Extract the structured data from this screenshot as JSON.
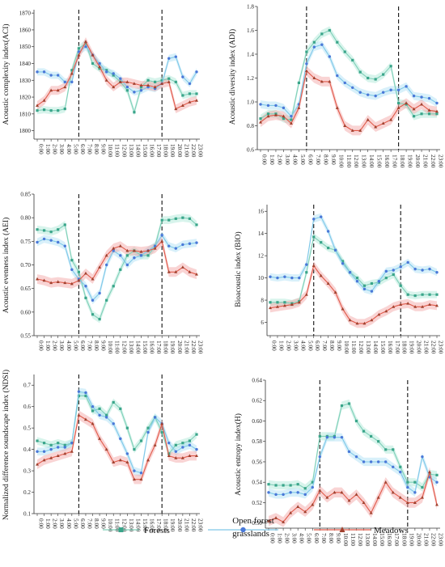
{
  "time_labels": [
    "0:00",
    "1:00",
    "2:00",
    "3:00",
    "4:00",
    "5:00",
    "6:00",
    "7:00",
    "8:00",
    "9:00",
    "10:00",
    "11:00",
    "12:00",
    "13:00",
    "14:00",
    "15:00",
    "16:00",
    "17:00",
    "18:00",
    "19:00",
    "20:00",
    "21:00",
    "22:00",
    "23:00"
  ],
  "legend": [
    {
      "name": "Forests",
      "color": "#3aa58a",
      "marker": "square"
    },
    {
      "name": "Open forest grasslands",
      "color": "#4a78d8",
      "marker": "circle"
    },
    {
      "name": "Meadows",
      "color": "#a0412e",
      "marker": "triangle"
    }
  ],
  "colors": {
    "forests_line": "#7fcfb8",
    "forests_band": "#a9e7d4",
    "ofg_line": "#7fc8e8",
    "ofg_band": "#a8ddf4",
    "meadows_line": "#e05a4a",
    "meadows_band": "#f2a0a0"
  },
  "chart_data": [
    {
      "type": "line",
      "ylabel": "Acoustic complexity index(ACI)",
      "ylim": [
        1795,
        1872
      ],
      "yticks": [
        1800,
        1810,
        1820,
        1830,
        1840,
        1850,
        1860,
        1870
      ],
      "dashed_x": [
        6,
        18
      ],
      "series": [
        {
          "name": "Forests",
          "values": [
            1812,
            1812.5,
            1812,
            1812,
            1813,
            1836,
            1849,
            1852,
            1840,
            1837,
            1836,
            1833,
            1829,
            1824,
            1811,
            1826,
            1830,
            1829,
            1830,
            1831,
            1829,
            1821,
            1822,
            1822
          ]
        },
        {
          "name": "Open forest grasslands",
          "values": [
            1835,
            1835,
            1833,
            1833,
            1829,
            1829,
            1847,
            1850,
            1845,
            1840,
            1835,
            1834,
            1831,
            1826,
            1823,
            1824,
            1826,
            1825,
            1828,
            1843,
            1844,
            1832,
            1828,
            1835
          ]
        },
        {
          "name": "Meadows",
          "values": [
            1815,
            1818,
            1824,
            1824,
            1826,
            1834,
            1845,
            1853,
            1845,
            1838,
            1830,
            1826,
            1829,
            1829,
            1828,
            1827,
            1827,
            1826,
            1828,
            1829,
            1813,
            1815,
            1817,
            1818
          ]
        }
      ]
    },
    {
      "type": "line",
      "ylabel": "Acoustic diversity index (ADI)",
      "ylim": [
        0.6,
        1.8
      ],
      "yticks": [
        0.6,
        0.8,
        1.0,
        1.2,
        1.4,
        1.6,
        1.8
      ],
      "dashed_x": [
        6,
        18
      ],
      "series": [
        {
          "name": "Forests",
          "values": [
            0.86,
            0.9,
            0.9,
            0.86,
            0.85,
            1.16,
            1.42,
            1.5,
            1.57,
            1.6,
            1.5,
            1.42,
            1.35,
            1.25,
            1.2,
            1.19,
            1.23,
            1.3,
            0.99,
            0.98,
            0.88,
            0.9,
            0.9,
            0.9
          ]
        },
        {
          "name": "Open forest grasslands",
          "values": [
            0.98,
            0.97,
            0.97,
            0.95,
            0.88,
            0.98,
            1.32,
            1.46,
            1.48,
            1.38,
            1.22,
            1.16,
            1.12,
            1.08,
            1.06,
            1.05,
            1.08,
            1.1,
            1.1,
            1.13,
            1.05,
            1.04,
            1.03,
            0.99
          ]
        },
        {
          "name": "Meadows",
          "values": [
            0.83,
            0.88,
            0.89,
            0.88,
            0.82,
            0.95,
            1.26,
            1.2,
            1.17,
            1.17,
            0.95,
            0.8,
            0.76,
            0.76,
            0.85,
            0.79,
            0.82,
            0.85,
            0.95,
            0.99,
            0.94,
            0.98,
            0.93,
            0.92
          ]
        }
      ]
    },
    {
      "type": "line",
      "ylabel": "Acoustic evenness index (AEI)",
      "ylim": [
        0.55,
        0.85
      ],
      "yticks": [
        0.55,
        0.6,
        0.65,
        0.7,
        0.75,
        0.8,
        0.85
      ],
      "dashed_x": [
        6,
        18
      ],
      "series": [
        {
          "name": "Forests",
          "values": [
            0.775,
            0.773,
            0.77,
            0.775,
            0.785,
            0.71,
            0.685,
            0.63,
            0.595,
            0.585,
            0.625,
            0.655,
            0.69,
            0.72,
            0.73,
            0.72,
            0.72,
            0.74,
            0.795,
            0.795,
            0.798,
            0.8,
            0.798,
            0.785
          ]
        },
        {
          "name": "Open forest grasslands",
          "values": [
            0.748,
            0.755,
            0.752,
            0.748,
            0.74,
            0.69,
            0.67,
            0.655,
            0.625,
            0.64,
            0.7,
            0.73,
            0.72,
            0.7,
            0.715,
            0.72,
            0.73,
            0.74,
            0.763,
            0.74,
            0.735,
            0.743,
            0.745,
            0.747
          ]
        },
        {
          "name": "Meadows",
          "values": [
            0.67,
            0.667,
            0.662,
            0.664,
            0.662,
            0.66,
            0.667,
            0.682,
            0.67,
            0.695,
            0.72,
            0.735,
            0.74,
            0.73,
            0.73,
            0.728,
            0.73,
            0.735,
            0.75,
            0.685,
            0.685,
            0.695,
            0.685,
            0.68
          ]
        }
      ]
    },
    {
      "type": "line",
      "ylabel": "Bioacoustic index (BIO)",
      "ylim": [
        4.8,
        16.6
      ],
      "yticks": [
        6,
        8,
        10,
        12,
        14,
        16
      ],
      "dashed_x": [
        6,
        18
      ],
      "series": [
        {
          "name": "Forests",
          "values": [
            7.8,
            7.8,
            7.8,
            7.7,
            7.9,
            10.5,
            13.7,
            13.2,
            12.7,
            12.5,
            11.5,
            10.5,
            10.0,
            9.3,
            9.5,
            9.6,
            10.0,
            10.3,
            9.3,
            8.5,
            8.4,
            8.5,
            8.5,
            8.5
          ]
        },
        {
          "name": "Open forest grasslands",
          "values": [
            10.1,
            10.0,
            10.1,
            10.0,
            10.0,
            11.2,
            15.3,
            15.5,
            14.2,
            12.5,
            11.3,
            10.5,
            9.7,
            9.0,
            8.8,
            9.7,
            10.6,
            10.7,
            11.0,
            11.4,
            10.8,
            10.7,
            10.8,
            10.5
          ]
        },
        {
          "name": "Meadows",
          "values": [
            7.3,
            7.4,
            7.5,
            7.6,
            7.8,
            8.5,
            11.1,
            10.2,
            9.5,
            8.7,
            7.2,
            6.2,
            5.9,
            5.9,
            6.2,
            6.7,
            7.0,
            7.4,
            7.6,
            7.7,
            7.4,
            7.4,
            7.6,
            7.5
          ]
        }
      ]
    },
    {
      "type": "line",
      "ylabel": "Normalized difference soundscape index (NDSI)",
      "ylim": [
        0.1,
        0.75
      ],
      "yticks": [
        0.1,
        0.2,
        0.3,
        0.4,
        0.5,
        0.6,
        0.7
      ],
      "dashed_x": [
        6,
        18
      ],
      "series": [
        {
          "name": "Forests",
          "values": [
            0.44,
            0.43,
            0.42,
            0.43,
            0.42,
            0.43,
            0.65,
            0.65,
            0.58,
            0.59,
            0.56,
            0.62,
            0.59,
            0.5,
            0.4,
            0.44,
            0.5,
            0.55,
            0.48,
            0.38,
            0.42,
            0.43,
            0.44,
            0.47
          ]
        },
        {
          "name": "Open forest grasslands",
          "values": [
            0.39,
            0.39,
            0.4,
            0.41,
            0.41,
            0.43,
            0.67,
            0.665,
            0.6,
            0.56,
            0.55,
            0.52,
            0.45,
            0.38,
            0.3,
            0.29,
            0.48,
            0.55,
            0.52,
            0.43,
            0.39,
            0.41,
            0.42,
            0.4
          ]
        },
        {
          "name": "Meadows",
          "values": [
            0.33,
            0.35,
            0.36,
            0.37,
            0.38,
            0.39,
            0.56,
            0.54,
            0.52,
            0.45,
            0.4,
            0.34,
            0.35,
            0.34,
            0.26,
            0.26,
            0.35,
            0.42,
            0.52,
            0.37,
            0.36,
            0.36,
            0.37,
            0.37
          ]
        }
      ]
    },
    {
      "type": "line",
      "ylabel": "Acoustic entropy index(H)",
      "ylim": [
        0.495,
        0.64
      ],
      "yticks": [
        0.5,
        0.52,
        0.54,
        0.56,
        0.58,
        0.6,
        0.62,
        0.64
      ],
      "dashed_x": [
        7,
        19
      ],
      "series": [
        {
          "name": "Forests",
          "values": [
            0.538,
            0.537,
            0.537,
            0.537,
            0.538,
            0.534,
            0.54,
            0.585,
            0.585,
            0.585,
            0.615,
            0.617,
            0.6,
            0.59,
            0.585,
            0.58,
            0.572,
            0.572,
            0.555,
            0.54,
            0.54,
            0.535,
            0.548,
            0.547
          ]
        },
        {
          "name": "Open forest grasslands",
          "values": [
            0.53,
            0.528,
            0.528,
            0.53,
            0.53,
            0.528,
            0.535,
            0.565,
            0.584,
            0.584,
            0.584,
            0.57,
            0.565,
            0.56,
            0.56,
            0.56,
            0.56,
            0.555,
            0.55,
            0.535,
            0.53,
            0.565,
            0.545,
            0.54
          ]
        },
        {
          "name": "Meadows",
          "values": [
            0.502,
            0.505,
            0.501,
            0.51,
            0.516,
            0.511,
            0.518,
            0.532,
            0.525,
            0.53,
            0.53,
            0.522,
            0.528,
            0.52,
            0.51,
            0.525,
            0.54,
            0.53,
            0.525,
            0.52,
            0.52,
            0.525,
            0.55,
            0.518
          ]
        }
      ]
    }
  ]
}
